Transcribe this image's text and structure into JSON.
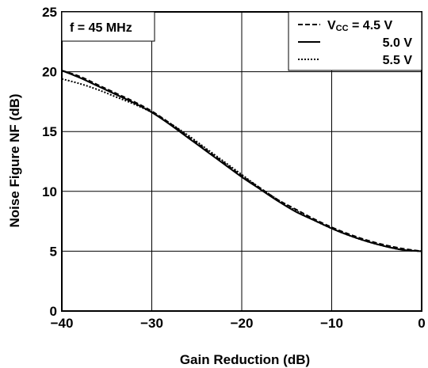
{
  "chart_data": {
    "type": "line",
    "title": "",
    "xlabel": "Gain Reduction (dB)",
    "ylabel": "Noise Figure NF (dB)",
    "xlim": [
      -40,
      0
    ],
    "ylim": [
      0,
      25
    ],
    "xticks": [
      "−40",
      "−30",
      "−20",
      "−10",
      "0"
    ],
    "yticks": [
      "0",
      "5",
      "10",
      "15",
      "20",
      "25"
    ],
    "grid": true,
    "annotation": "f = 45 MHz",
    "legend_position": "top-right",
    "legend_title": {
      "prefix": "V",
      "sub": "CC",
      "suffix": " = 4.5 V"
    },
    "series": [
      {
        "name": "4.5 V",
        "style": "dashed",
        "x": [
          -40,
          -38,
          -36,
          -34,
          -32,
          -30,
          -28,
          -26,
          -24,
          -22,
          -20,
          -18,
          -16,
          -14,
          -12,
          -10,
          -8,
          -6,
          -4,
          -2,
          0
        ],
        "y": [
          20.1,
          19.6,
          18.9,
          18.2,
          17.5,
          16.7,
          15.7,
          14.6,
          13.5,
          12.4,
          11.3,
          10.3,
          9.3,
          8.5,
          7.7,
          7.0,
          6.4,
          5.9,
          5.5,
          5.2,
          5.0
        ]
      },
      {
        "name": "5.0 V",
        "style": "solid",
        "x": [
          -40,
          -38,
          -36,
          -34,
          -32,
          -30,
          -28,
          -26,
          -24,
          -22,
          -20,
          -18,
          -16,
          -14,
          -12,
          -10,
          -8,
          -6,
          -4,
          -2,
          0
        ],
        "y": [
          20.1,
          19.5,
          18.8,
          18.1,
          17.4,
          16.6,
          15.6,
          14.5,
          13.4,
          12.3,
          11.2,
          10.2,
          9.2,
          8.3,
          7.6,
          6.9,
          6.3,
          5.8,
          5.4,
          5.1,
          5.0
        ]
      },
      {
        "name": "5.5 V",
        "style": "dotted",
        "x": [
          -40,
          -38,
          -36,
          -34,
          -32,
          -30,
          -28,
          -26,
          -24,
          -22,
          -20,
          -18,
          -16,
          -14,
          -12,
          -10,
          -8,
          -6,
          -4,
          -2,
          0
        ],
        "y": [
          19.4,
          19.0,
          18.5,
          17.9,
          17.3,
          16.6,
          15.7,
          14.7,
          13.6,
          12.5,
          11.4,
          10.3,
          9.3,
          8.4,
          7.6,
          6.9,
          6.3,
          5.8,
          5.4,
          5.1,
          5.0
        ]
      }
    ]
  }
}
